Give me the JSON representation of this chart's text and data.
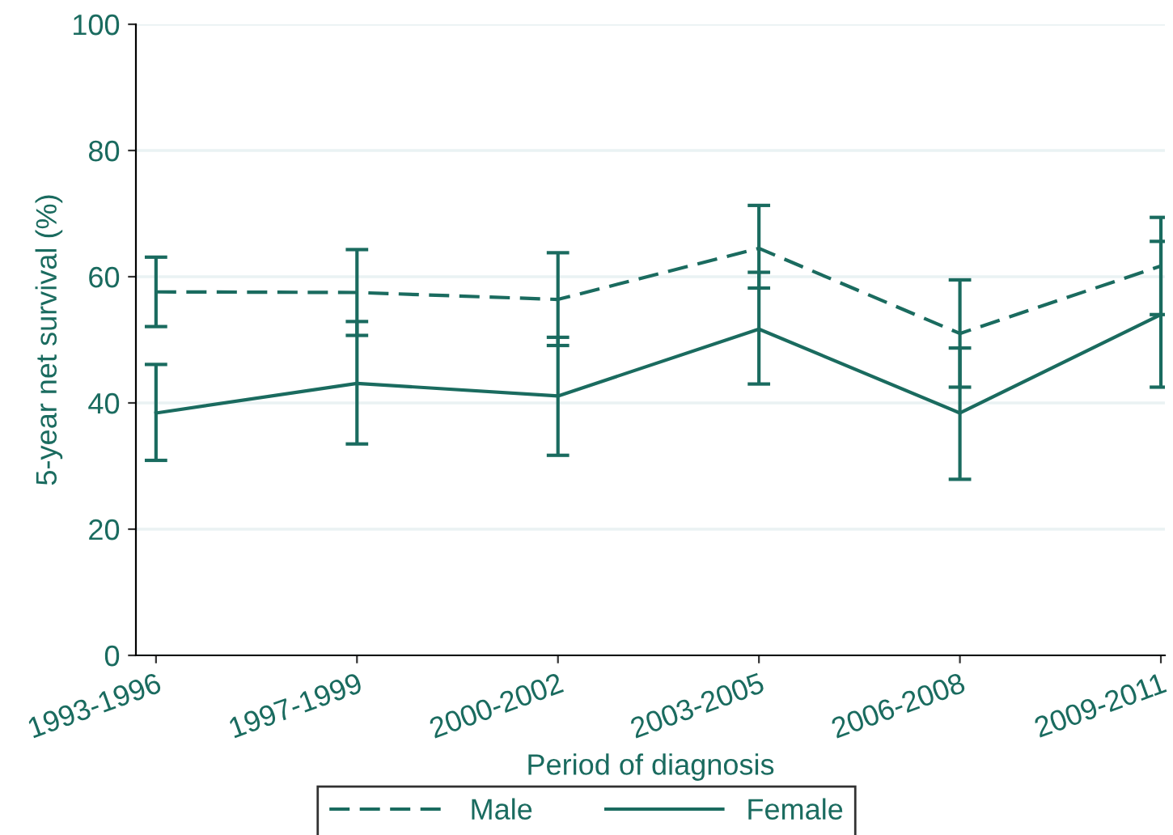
{
  "chart_data": {
    "type": "line",
    "xlabel": "Period of diagnosis",
    "ylabel": "5-year net survival (%)",
    "categories": [
      "1993-1996",
      "1997-1999",
      "2000-2002",
      "2003-2005",
      "2006-2008",
      "2009-2011"
    ],
    "series": [
      {
        "name": "Male",
        "color": "#1a6b5f",
        "line_style": "dashed",
        "values": [
          57.6,
          57.5,
          56.4,
          64.5,
          51.0,
          61.7
        ],
        "errors": [
          [
            52.1,
            63.1
          ],
          [
            50.7,
            64.3
          ],
          [
            49.1,
            63.8
          ],
          [
            58.2,
            71.3
          ],
          [
            42.5,
            59.5
          ],
          [
            54.0,
            69.4
          ]
        ]
      },
      {
        "name": "Female",
        "color": "#1a6b5f",
        "line_style": "solid",
        "values": [
          38.4,
          43.1,
          41.1,
          51.7,
          38.4,
          54.0
        ],
        "errors": [
          [
            30.9,
            46.1
          ],
          [
            33.5,
            52.9
          ],
          [
            31.7,
            50.4
          ],
          [
            43.0,
            60.7
          ],
          [
            27.9,
            48.7
          ],
          [
            42.5,
            65.6
          ]
        ]
      }
    ],
    "ylim": [
      0,
      100
    ],
    "yticks": [
      0,
      20,
      40,
      60,
      80,
      100
    ],
    "grid": "y",
    "legend": "bottom",
    "marker": "none"
  }
}
